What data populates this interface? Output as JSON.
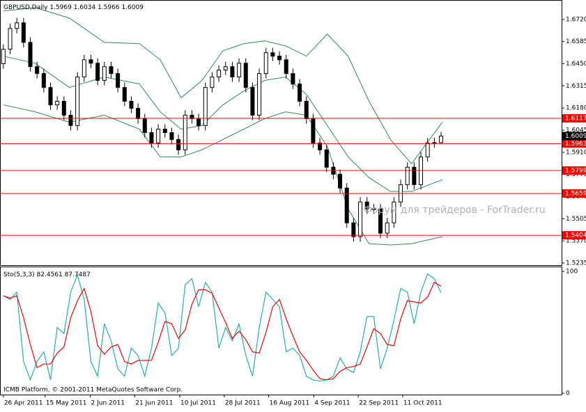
{
  "chart_data": [
    {
      "type": "candlestick",
      "title": "GBPUSD,Daily",
      "open": [
        1.645,
        1.6538,
        1.6665,
        1.6699,
        1.658,
        1.6432,
        1.639,
        1.6305,
        1.6199,
        1.6221,
        1.6136,
        1.6073,
        1.6369,
        1.6474,
        1.6453,
        1.6348,
        1.6432,
        1.639,
        1.6305,
        1.6221,
        1.6178,
        1.6115,
        1.603,
        1.5967,
        1.6051,
        1.603,
        1.5988,
        1.5925,
        1.6136,
        1.6115,
        1.6073,
        1.6305,
        1.6369,
        1.6411,
        1.6432,
        1.6369,
        1.6453,
        1.6305,
        1.6136,
        1.639,
        1.6517,
        1.6496,
        1.6474,
        1.639,
        1.6326,
        1.6221,
        1.6115,
        1.5967,
        1.5925,
        1.5819,
        1.5776,
        1.5692,
        1.548,
        1.5396,
        1.5607,
        1.5565,
        1.5565,
        1.5417,
        1.548,
        1.5607,
        1.5713,
        1.5819,
        1.5713,
        1.5882,
        1.5967,
        1.5969
      ],
      "high": [
        1.6568,
        1.6695,
        1.6729,
        1.6729,
        1.661,
        1.6462,
        1.642,
        1.6335,
        1.6251,
        1.6251,
        1.6166,
        1.6399,
        1.6504,
        1.6504,
        1.6483,
        1.6462,
        1.6462,
        1.642,
        1.6335,
        1.6251,
        1.6208,
        1.6145,
        1.606,
        1.6081,
        1.6081,
        1.606,
        1.6018,
        1.6166,
        1.6166,
        1.6145,
        1.6335,
        1.6399,
        1.6441,
        1.6462,
        1.6462,
        1.6483,
        1.6483,
        1.6335,
        1.642,
        1.6547,
        1.6547,
        1.6526,
        1.6504,
        1.642,
        1.6356,
        1.6251,
        1.6145,
        1.5997,
        1.5955,
        1.5849,
        1.5806,
        1.5722,
        1.551,
        1.5637,
        1.5637,
        1.5595,
        1.5595,
        1.551,
        1.5637,
        1.5743,
        1.5849,
        1.5849,
        1.5912,
        1.5997,
        1.5999,
        1.6034
      ],
      "low": [
        1.642,
        1.6508,
        1.6635,
        1.655,
        1.6402,
        1.636,
        1.6275,
        1.6169,
        1.6169,
        1.6106,
        1.6043,
        1.6043,
        1.6339,
        1.6423,
        1.6318,
        1.6318,
        1.636,
        1.6275,
        1.6191,
        1.6148,
        1.6085,
        1.6,
        1.5937,
        1.5937,
        1.6,
        1.5958,
        1.5895,
        1.5895,
        1.6085,
        1.6043,
        1.6043,
        1.6275,
        1.6339,
        1.6381,
        1.6339,
        1.6339,
        1.6275,
        1.6106,
        1.6106,
        1.636,
        1.6466,
        1.6444,
        1.636,
        1.6296,
        1.6191,
        1.6085,
        1.5937,
        1.5895,
        1.5789,
        1.5746,
        1.5662,
        1.545,
        1.5366,
        1.5366,
        1.5535,
        1.5535,
        1.5387,
        1.5387,
        1.545,
        1.5577,
        1.5683,
        1.5683,
        1.5683,
        1.5852,
        1.5937,
        1.5966
      ],
      "close": [
        1.6538,
        1.6665,
        1.6699,
        1.658,
        1.6432,
        1.639,
        1.6305,
        1.6199,
        1.6221,
        1.6136,
        1.6073,
        1.6369,
        1.6474,
        1.6453,
        1.6348,
        1.6432,
        1.639,
        1.6305,
        1.6221,
        1.6178,
        1.6115,
        1.603,
        1.5967,
        1.6051,
        1.603,
        1.5988,
        1.5925,
        1.6136,
        1.6115,
        1.6073,
        1.6305,
        1.6369,
        1.6411,
        1.6432,
        1.6369,
        1.6453,
        1.6305,
        1.6136,
        1.639,
        1.6517,
        1.6496,
        1.6474,
        1.639,
        1.6326,
        1.6221,
        1.6115,
        1.5967,
        1.5925,
        1.5819,
        1.5776,
        1.5692,
        1.548,
        1.5396,
        1.5607,
        1.5565,
        1.5565,
        1.5417,
        1.548,
        1.5607,
        1.5713,
        1.5819,
        1.5713,
        1.5882,
        1.5967,
        1.5969,
        1.6009
      ],
      "candle_color": "#000000",
      "band_x": [
        0,
        4.7,
        9.8,
        15,
        20.2,
        23.3,
        26.4,
        29.5,
        32.6,
        35.7,
        38.8,
        41.9,
        45,
        48.1,
        51.2,
        54.3,
        57.5,
        60.6,
        65.2
      ],
      "bands": [
        {
          "color": "#2e8b57",
          "values": [
            1.6771,
            1.6792,
            1.6728,
            1.658,
            1.6572,
            1.6474,
            1.6242,
            1.6348,
            1.6529,
            1.6572,
            1.6589,
            1.6559,
            1.6496,
            1.6631,
            1.6496,
            1.6221,
            1.5988,
            1.584,
            1.6094
          ]
        },
        {
          "color": "#2e8b57",
          "values": [
            1.6496,
            1.6453,
            1.6305,
            1.6369,
            1.6326,
            1.6157,
            1.6051,
            1.6073,
            1.6199,
            1.6284,
            1.6348,
            1.6369,
            1.6263,
            1.6073,
            1.5882,
            1.5755,
            1.5671,
            1.5671,
            1.5743
          ]
        },
        {
          "color": "#2e8b57",
          "values": [
            1.6199,
            1.6157,
            1.6094,
            1.6136,
            1.6051,
            1.5882,
            1.5882,
            1.5925,
            1.5988,
            1.6051,
            1.6115,
            1.6157,
            1.6136,
            1.5946,
            1.5565,
            1.5353,
            1.5345,
            1.5353,
            1.5396
          ]
        }
      ],
      "levels": [
        1.6117,
        1.5963,
        1.5799,
        1.5659,
        1.5404
      ],
      "level_color": "#ff0000",
      "xlim": [
        -0.5,
        82.9
      ],
      "ylim": [
        1.5222,
        1.6834
      ],
      "yticks": [
        {
          "value": 1.672,
          "label": "1.6720"
        },
        {
          "value": 1.6585,
          "label": "1.6585"
        },
        {
          "value": 1.645,
          "label": "1.6450"
        },
        {
          "value": 1.6315,
          "label": "1.6315"
        },
        {
          "value": 1.618,
          "label": "1.6180"
        },
        {
          "value": 1.6045,
          "label": "1.6045"
        },
        {
          "value": 1.591,
          "label": "1.5910"
        },
        {
          "value": 1.5775,
          "label": "1.5775"
        },
        {
          "value": 1.564,
          "label": "1.5640"
        },
        {
          "value": 1.5505,
          "label": "1.5505"
        },
        {
          "value": 1.537,
          "label": "1.5370"
        },
        {
          "value": 1.5235,
          "label": "1.5235"
        }
      ],
      "watermark": "Форум для трейдеров - ForTrader.ru"
    },
    {
      "type": "line",
      "title": "Sto(5,3,3)",
      "series": [
        {
          "color": "#20b2aa",
          "values": [
            80,
            77,
            83,
            26,
            11,
            26,
            34,
            11,
            54,
            49,
            83,
            97,
            77,
            26,
            14,
            57,
            43,
            20,
            14,
            37,
            31,
            14,
            37,
            74,
            66,
            31,
            37,
            89,
            94,
            71,
            91,
            83,
            37,
            54,
            43,
            57,
            31,
            14,
            54,
            83,
            77,
            71,
            34,
            37,
            31,
            14,
            11,
            10,
            11,
            14,
            29,
            20,
            17,
            34,
            63,
            63,
            20,
            37,
            60,
            86,
            83,
            57,
            83,
            98,
            94,
            82.4561
          ]
        },
        {
          "color": "#ff0000",
          "values": [
            80,
            78,
            80,
            62,
            40,
            21,
            24,
            24,
            33,
            38,
            62,
            76,
            86,
            67,
            39,
            32,
            38,
            40,
            26,
            24,
            27,
            27,
            27,
            42,
            59,
            57,
            45,
            52,
            73,
            85,
            85,
            82,
            70,
            58,
            45,
            51,
            44,
            34,
            33,
            50,
            71,
            77,
            61,
            47,
            34,
            27,
            19,
            12,
            11,
            12,
            18,
            21,
            22,
            24,
            38,
            53,
            49,
            40,
            39,
            61,
            76,
            75,
            74,
            79,
            91,
            87.7487
          ]
        }
      ],
      "xlim": [
        -0.5,
        82.9
      ],
      "ylim": [
        -1.1,
        103.4
      ],
      "yticks": [
        100,
        0
      ],
      "xticks": [
        {
          "value": 0,
          "label": "26 Apr 2011"
        },
        {
          "value": 6.2,
          "label": "15 May 2011"
        },
        {
          "value": 12.9,
          "label": "2 Jun 2011"
        },
        {
          "value": 19.5,
          "label": "21 Jun 2011"
        },
        {
          "value": 26.2,
          "label": "10 Jul 2011"
        },
        {
          "value": 32.8,
          "label": "28 Jul 2011"
        },
        {
          "value": 39.4,
          "label": "16 Aug 2011"
        },
        {
          "value": 46.1,
          "label": "4 Sep 2011"
        },
        {
          "value": 52.7,
          "label": "22 Sep 2011"
        },
        {
          "value": 59.3,
          "label": "11 Oct 2011"
        }
      ],
      "footer": "ICMB Platform, © 2001-2011 MetaQuotes Software Corp."
    }
  ]
}
